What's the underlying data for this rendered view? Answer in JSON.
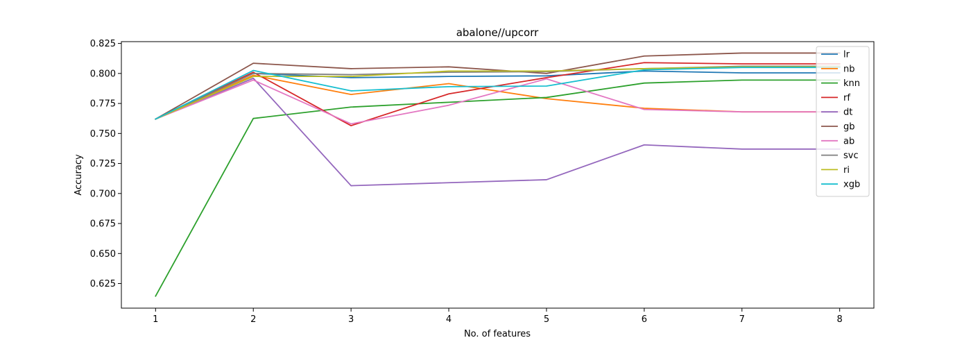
{
  "chart_data": {
    "type": "line",
    "title": "abalone//upcorr",
    "xlabel": "No. of features",
    "ylabel": "Accuracy",
    "x": [
      1,
      2,
      3,
      4,
      5,
      6,
      7,
      8
    ],
    "xlim": [
      0.65,
      8.35
    ],
    "ylim": [
      0.6045,
      0.8265
    ],
    "xticks": [
      1,
      2,
      3,
      4,
      5,
      6,
      7,
      8
    ],
    "yticks": [
      0.625,
      0.65,
      0.675,
      0.7,
      0.725,
      0.75,
      0.775,
      0.8,
      0.825
    ],
    "ytick_labels": [
      "0.625",
      "0.650",
      "0.675",
      "0.700",
      "0.725",
      "0.750",
      "0.775",
      "0.800",
      "0.825"
    ],
    "grid": false,
    "legend_position": "top-right",
    "series": [
      {
        "name": "lr",
        "color": "#1f77b4",
        "values": [
          0.762,
          0.8,
          0.7965,
          0.7975,
          0.798,
          0.802,
          0.8005,
          0.8005
        ]
      },
      {
        "name": "nb",
        "color": "#ff7f0e",
        "values": [
          0.762,
          0.7985,
          0.7825,
          0.7915,
          0.779,
          0.771,
          0.768,
          0.768
        ]
      },
      {
        "name": "knn",
        "color": "#2ca02c",
        "values": [
          0.6145,
          0.7625,
          0.772,
          0.776,
          0.78,
          0.792,
          0.7945,
          0.7945
        ]
      },
      {
        "name": "rf",
        "color": "#d62728",
        "values": [
          0.762,
          0.801,
          0.7565,
          0.783,
          0.7965,
          0.809,
          0.808,
          0.808
        ]
      },
      {
        "name": "dt",
        "color": "#9467bd",
        "values": [
          0.762,
          0.796,
          0.7065,
          0.709,
          0.7115,
          0.7405,
          0.737,
          0.737
        ]
      },
      {
        "name": "gb",
        "color": "#8c564b",
        "values": [
          0.762,
          0.8085,
          0.804,
          0.8055,
          0.8,
          0.8145,
          0.817,
          0.817
        ]
      },
      {
        "name": "ab",
        "color": "#e377c2",
        "values": [
          0.762,
          0.7945,
          0.758,
          0.7735,
          0.7955,
          0.77,
          0.768,
          0.768
        ]
      },
      {
        "name": "svc",
        "color": "#7f7f7f",
        "values": [
          0.762,
          0.8,
          0.799,
          0.801,
          0.8015,
          0.804,
          0.806,
          0.806
        ]
      },
      {
        "name": "ri",
        "color": "#bcbd22",
        "values": [
          0.762,
          0.7975,
          0.7975,
          0.802,
          0.802,
          0.804,
          0.8055,
          0.8055
        ]
      },
      {
        "name": "xgb",
        "color": "#17becf",
        "values": [
          0.762,
          0.8025,
          0.7855,
          0.789,
          0.7895,
          0.803,
          0.805,
          0.805
        ]
      }
    ]
  }
}
